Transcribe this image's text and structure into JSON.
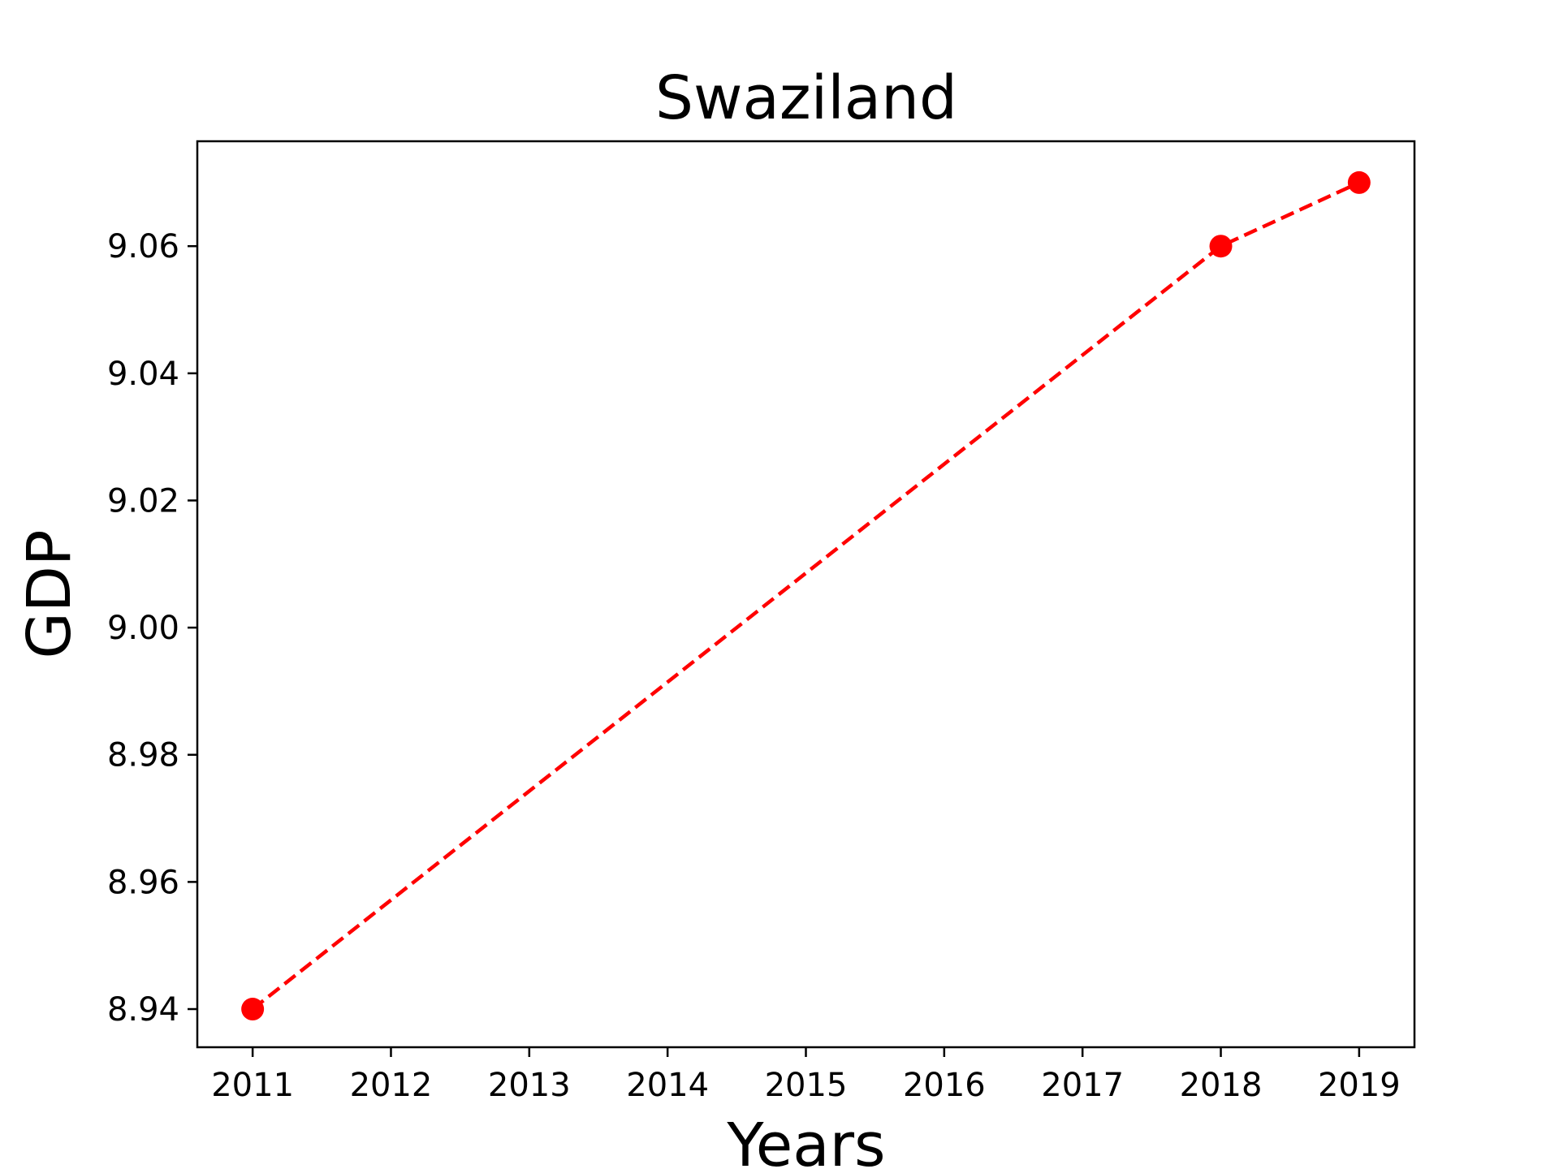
{
  "chart_data": {
    "type": "line",
    "title": "Swaziland",
    "xlabel": "Years",
    "ylabel": "GDP",
    "x": [
      2011,
      2018,
      2019
    ],
    "series": [
      {
        "values": [
          8.94,
          9.06,
          9.07
        ],
        "color": "#ff0000",
        "line_style": "dashed",
        "marker": "circle"
      }
    ],
    "xticks": [
      "2011",
      "2012",
      "2013",
      "2014",
      "2015",
      "2016",
      "2017",
      "2018",
      "2019"
    ],
    "xtick_values": [
      2011,
      2012,
      2013,
      2014,
      2015,
      2016,
      2017,
      2018,
      2019
    ],
    "yticks": [
      "8.94",
      "8.96",
      "8.98",
      "9.00",
      "9.02",
      "9.04",
      "9.06"
    ],
    "ytick_values": [
      8.94,
      8.96,
      8.98,
      9.0,
      9.02,
      9.04,
      9.06
    ],
    "xlim": [
      2010.6,
      2019.4
    ],
    "ylim": [
      8.934,
      9.0765
    ],
    "grid": false,
    "legend": "none"
  }
}
